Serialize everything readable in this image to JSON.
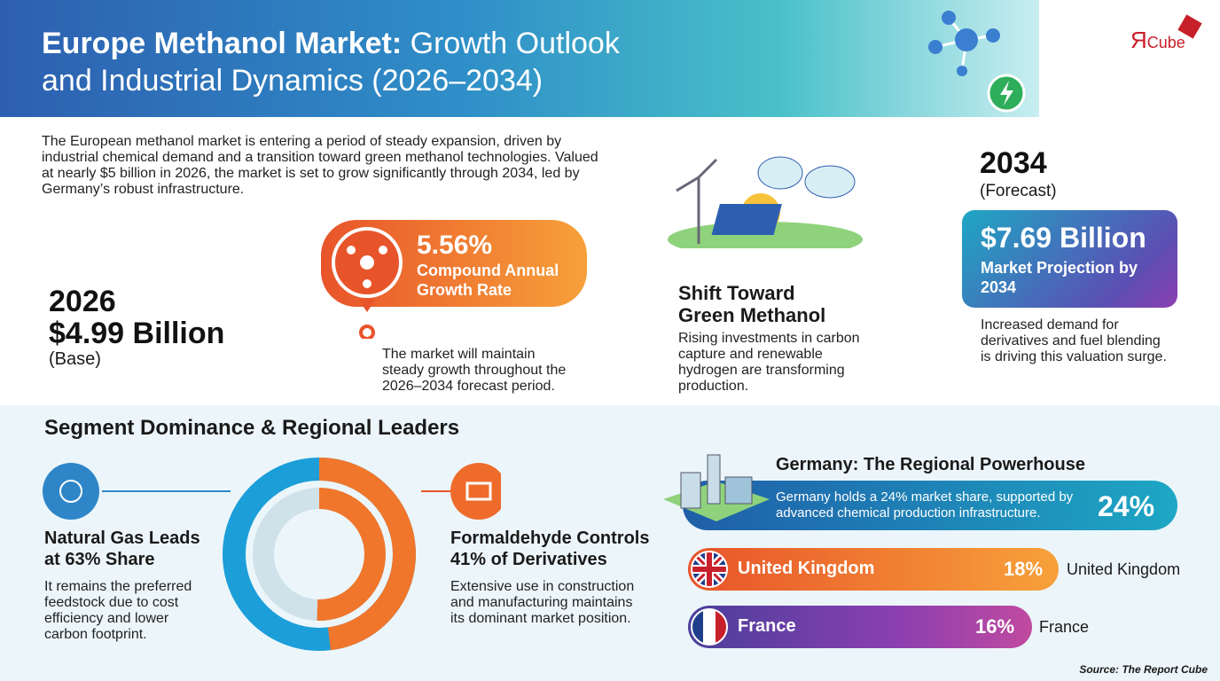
{
  "header": {
    "title_bold": "Europe Methanol Market:",
    "title_rest": "Growth Outlook",
    "title_line2": "and Industrial Dynamics (2026–2034)",
    "logo_mark": "Я",
    "logo_text": "Cube"
  },
  "intro": "The European methanol market is entering a period of steady expansion, driven by industrial chemical demand and a transition toward green methanol technologies. Valued at nearly $5 billion in 2026, the market is set to grow significantly through 2034, led by Germany’s robust infrastructure.",
  "base": {
    "year": "2026",
    "value": "$4.99 Billion",
    "note": "(Base)"
  },
  "cagr": {
    "value": "5.56%",
    "label": "Compound Annual Growth Rate",
    "description": "The market will maintain steady growth throughout the 2026–2034 forecast period."
  },
  "green": {
    "title": "Shift Toward Green Methanol",
    "description": "Rising investments in carbon capture and renewable hydrogen are transforming production."
  },
  "forecast": {
    "year": "2034",
    "note": "(Forecast)",
    "value": "$7.69 Billion",
    "label": "Market Projection by 2034",
    "description": "Increased demand for derivatives and fuel blending is driving this valuation surge."
  },
  "segments": {
    "title": "Segment Dominance & Regional Leaders",
    "feedstock": {
      "title": "Natural Gas Leads at 63% Share",
      "description": "It remains the preferred feedstock due to cost efficiency and lower carbon footprint."
    },
    "derivatives": {
      "title": "Formaldehyde Controls 41% of Derivatives",
      "description": "Extensive use in construction and manufacturing maintains its dominant market position."
    }
  },
  "regions": {
    "germany": {
      "title": "Germany: The Regional Powerhouse",
      "description": "Germany holds a 24% market share, supported by advanced chemical production infrastructure.",
      "share": "24%"
    },
    "uk": {
      "name": "United Kingdom",
      "share": "18%",
      "side_label": "United Kingdom"
    },
    "france": {
      "name": "France",
      "share": "16%",
      "side_label": "France"
    }
  },
  "source": "Source: The Report Cube"
}
